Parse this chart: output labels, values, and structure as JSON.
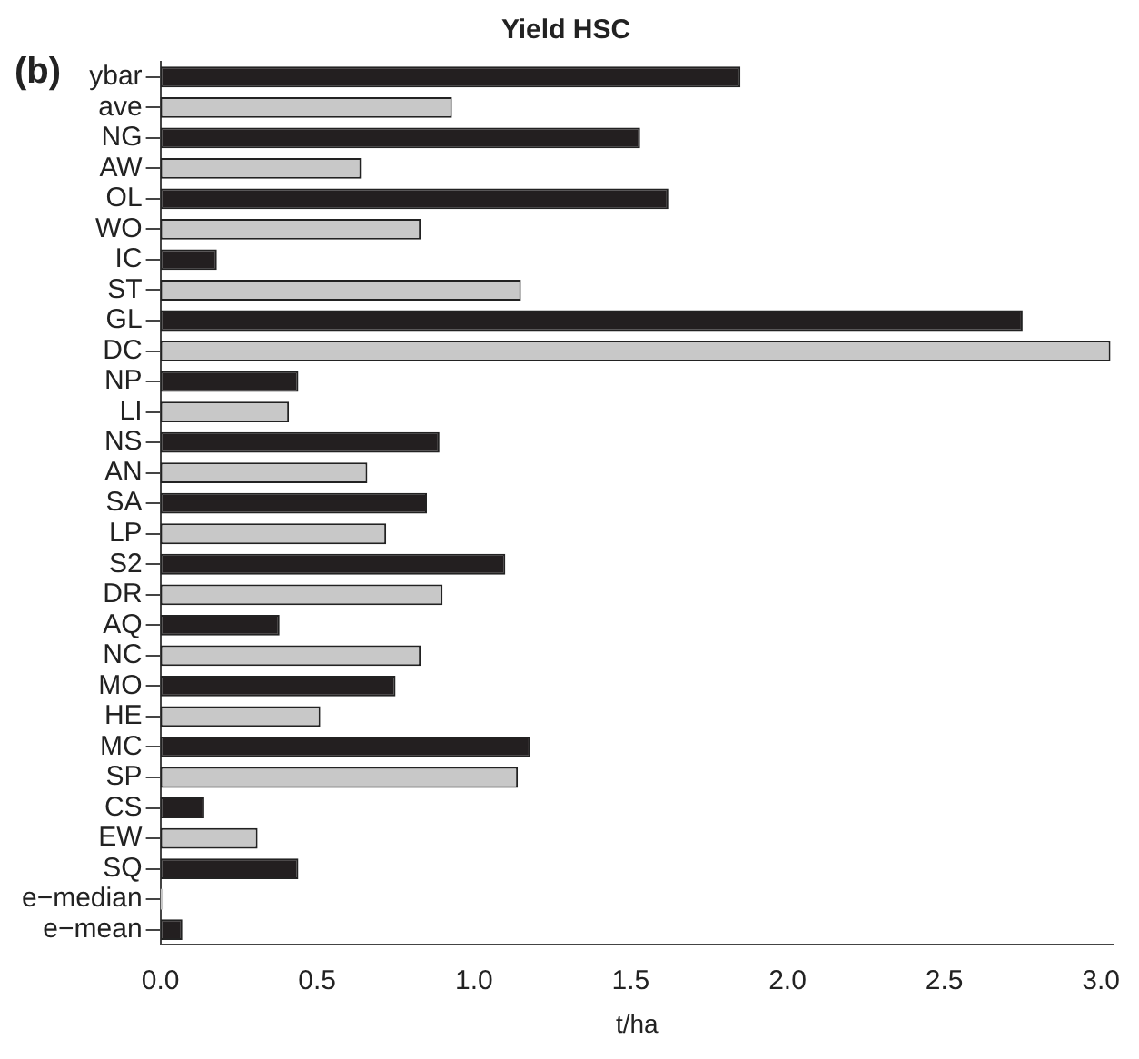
{
  "chart_data": {
    "type": "bar",
    "orientation": "horizontal",
    "title": "Yield HSC",
    "xlabel": "t/ha",
    "annotations": [
      "(b)"
    ],
    "categories": [
      "ybar",
      "ave",
      "NG",
      "AW",
      "OL",
      "WO",
      "IC",
      "ST",
      "GL",
      "DC",
      "NP",
      "LI",
      "NS",
      "AN",
      "SA",
      "LP",
      "S2",
      "DR",
      "AQ",
      "NC",
      "MO",
      "HE",
      "MC",
      "SP",
      "CS",
      "EW",
      "SQ",
      "e−median",
      "e−mean"
    ],
    "values": [
      1.85,
      0.93,
      1.53,
      0.64,
      1.62,
      0.83,
      0.18,
      1.15,
      2.75,
      3.03,
      0.44,
      0.41,
      0.89,
      0.66,
      0.85,
      0.72,
      1.1,
      0.9,
      0.38,
      0.83,
      0.75,
      0.51,
      1.18,
      1.14,
      0.14,
      0.31,
      0.44,
      0.01,
      0.07
    ],
    "colors": [
      "#231f20",
      "#c8c8c8",
      "#231f20",
      "#c8c8c8",
      "#231f20",
      "#c8c8c8",
      "#231f20",
      "#c8c8c8",
      "#231f20",
      "#c8c8c8",
      "#231f20",
      "#c8c8c8",
      "#231f20",
      "#c8c8c8",
      "#231f20",
      "#c8c8c8",
      "#231f20",
      "#c8c8c8",
      "#231f20",
      "#c8c8c8",
      "#231f20",
      "#c8c8c8",
      "#231f20",
      "#c8c8c8",
      "#231f20",
      "#c8c8c8",
      "#231f20",
      "#c8c8c8",
      "#231f20"
    ],
    "xlim": [
      0,
      3.04
    ],
    "xticks": [
      {
        "value": 0,
        "label": "0.0"
      },
      0.5,
      {
        "value": 1,
        "label": "1.0"
      },
      1.5,
      {
        "value": 2,
        "label": "2.0"
      },
      2.5,
      {
        "value": 3,
        "label": "3.0"
      }
    ],
    "grid": false,
    "legend": false
  }
}
